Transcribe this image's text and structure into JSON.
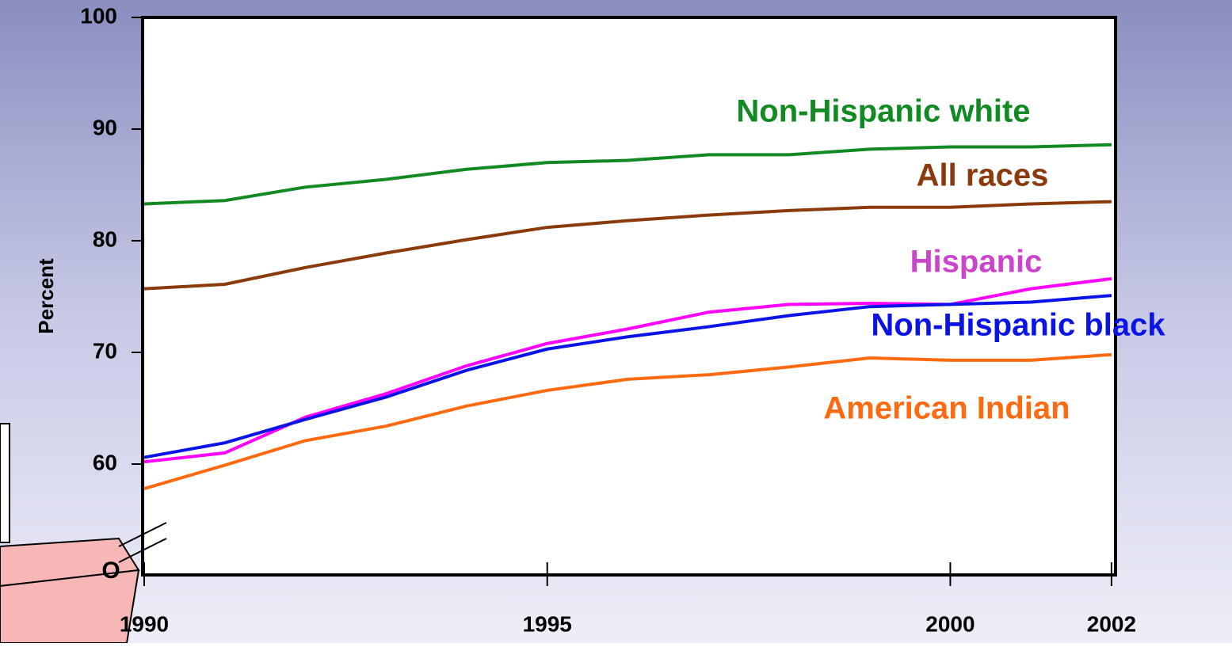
{
  "chart_data": {
    "type": "line",
    "y_label": "Percent",
    "axis_break_label": "O",
    "x": [
      1990,
      1991,
      1992,
      1993,
      1994,
      1995,
      1996,
      1997,
      1998,
      1999,
      2000,
      2001,
      2002
    ],
    "series": [
      {
        "name": "Non-Hispanic white",
        "color": "#118a22",
        "values": [
          83.3,
          83.6,
          84.8,
          85.5,
          86.4,
          87.0,
          87.2,
          87.7,
          87.7,
          88.2,
          88.4,
          88.4,
          88.6
        ]
      },
      {
        "name": "All races",
        "color": "#8b3a0c",
        "values": [
          75.7,
          76.1,
          77.6,
          78.9,
          80.1,
          81.2,
          81.8,
          82.3,
          82.7,
          83.0,
          83.0,
          83.3,
          83.5
        ]
      },
      {
        "name": "Hispanic",
        "color": "#ff00ff",
        "label_color": "#cc44cc",
        "values": [
          60.2,
          61.0,
          64.2,
          66.3,
          68.8,
          70.8,
          72.1,
          73.6,
          74.3,
          74.4,
          74.3,
          75.7,
          76.6
        ]
      },
      {
        "name": "Non-Hispanic black",
        "color": "#0a14e6",
        "values": [
          60.6,
          61.9,
          64.0,
          66.0,
          68.4,
          70.3,
          71.4,
          72.3,
          73.3,
          74.1,
          74.3,
          74.5,
          75.1
        ]
      },
      {
        "name": "American Indian",
        "color": "#ff6a10",
        "values": [
          57.8,
          59.9,
          62.1,
          63.4,
          65.2,
          66.6,
          67.6,
          68.0,
          68.7,
          69.5,
          69.3,
          69.3,
          69.8
        ]
      }
    ],
    "xlim": [
      1990,
      2002.05
    ],
    "xticks": [
      1990,
      1995,
      2000,
      2002
    ],
    "ylim": [
      50,
      100
    ],
    "yticks": [
      60,
      70,
      80,
      90,
      100
    ]
  }
}
